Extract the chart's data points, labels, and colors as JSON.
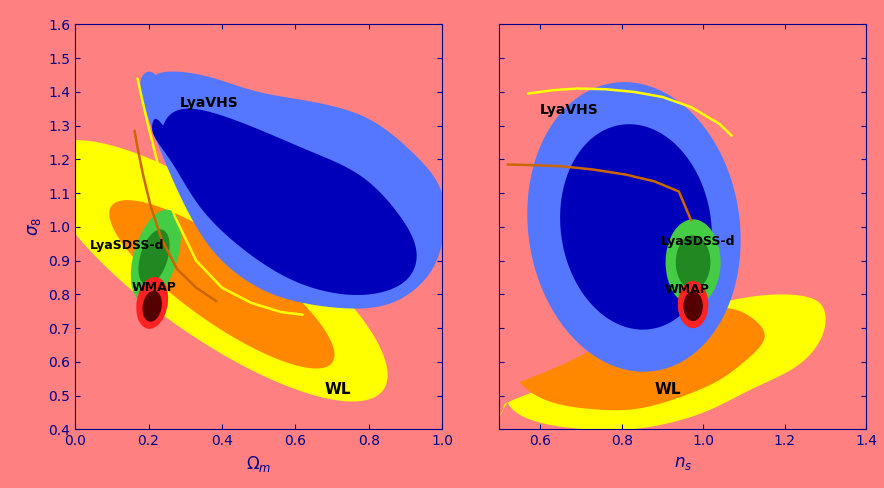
{
  "fig_width": 8.84,
  "fig_height": 4.88,
  "dpi": 100,
  "bg_color": "#FF8080",
  "colors": {
    "WL_outer": "#FFFF00",
    "WL_inner": "#FF8800",
    "LyaVHS_outer": "#5577FF",
    "LyaVHS_inner": "#0000BB",
    "LyaSDSS_outer": "#44CC44",
    "LyaSDSS_inner": "#228822",
    "WMAP_outer": "#FF2222",
    "WMAP_inner": "#550000",
    "orange_line": "#CC6600",
    "yellow_line": "#FFFF00",
    "label_color": "black",
    "axis_label_color": "#000088"
  },
  "left_panel": {
    "xlabel": "$\\Omega_m$",
    "ylabel": "$\\sigma_8$",
    "xlim": [
      0,
      1
    ],
    "ylim": [
      0.4,
      1.6
    ],
    "xticks": [
      0,
      0.2,
      0.4,
      0.6,
      0.8,
      1.0
    ],
    "yticks": [
      0.4,
      0.5,
      0.6,
      0.7,
      0.8,
      0.9,
      1.0,
      1.1,
      1.2,
      1.3,
      1.4,
      1.5,
      1.6
    ]
  },
  "right_panel": {
    "xlabel": "$n_s$",
    "xlim": [
      0.5,
      1.4
    ],
    "ylim": [
      0.4,
      1.6
    ],
    "xticks": [
      0.6,
      0.8,
      1.0,
      1.2,
      1.4
    ],
    "yticks": [
      0.4,
      0.5,
      0.6,
      0.7,
      0.8,
      0.9,
      1.0,
      1.1,
      1.2,
      1.3,
      1.4,
      1.5,
      1.6
    ]
  }
}
